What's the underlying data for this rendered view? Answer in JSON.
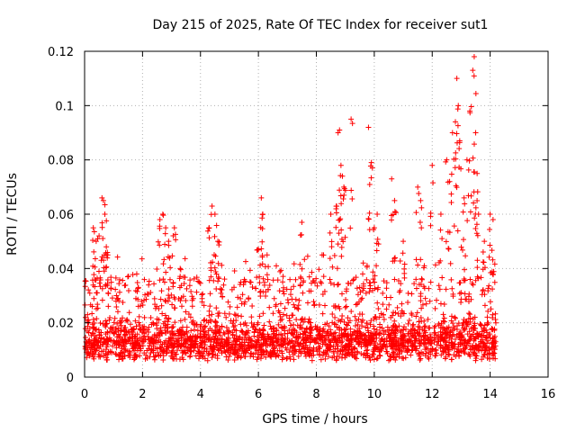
{
  "chart_data": {
    "type": "scatter",
    "title": "Day 215 of 2025, Rate Of TEC Index for receiver sut1",
    "xlabel": "GPS time / hours",
    "ylabel": "ROTI / TECUs",
    "xlim": [
      0,
      16
    ],
    "ylim": [
      0,
      0.12
    ],
    "xticks": [
      0,
      2,
      4,
      6,
      8,
      10,
      12,
      14,
      16
    ],
    "xtick_labels": [
      "0",
      "2",
      "4",
      "6",
      "8",
      "10",
      "12",
      "14",
      "16"
    ],
    "yticks": [
      0,
      0.02,
      0.04,
      0.06,
      0.08,
      0.1,
      0.12
    ],
    "ytick_labels": [
      "0",
      "0.02",
      "0.04",
      "0.06",
      "0.08",
      "0.1",
      "0.12"
    ],
    "grid": true,
    "marker": "+",
    "color": "#ff0000",
    "series": [
      {
        "name": "ROTI",
        "x_range": [
          0,
          14.2
        ],
        "baseline_range": [
          0.006,
          0.025
        ],
        "outliers": [
          [
            0.3,
            0.055
          ],
          [
            0.4,
            0.05
          ],
          [
            0.5,
            0.052
          ],
          [
            0.6,
            0.066
          ],
          [
            0.65,
            0.065
          ],
          [
            0.7,
            0.06
          ],
          [
            0.75,
            0.048
          ],
          [
            0.8,
            0.045
          ],
          [
            1.1,
            0.03
          ],
          [
            1.8,
            0.038
          ],
          [
            2.6,
            0.058
          ],
          [
            2.7,
            0.06
          ],
          [
            2.8,
            0.055
          ],
          [
            2.9,
            0.05
          ],
          [
            3.1,
            0.055
          ],
          [
            3.3,
            0.04
          ],
          [
            4.3,
            0.055
          ],
          [
            4.4,
            0.063
          ],
          [
            4.5,
            0.06
          ],
          [
            4.6,
            0.05
          ],
          [
            5.5,
            0.035
          ],
          [
            6.0,
            0.047
          ],
          [
            6.1,
            0.066
          ],
          [
            6.15,
            0.06
          ],
          [
            6.3,
            0.045
          ],
          [
            7.5,
            0.057
          ],
          [
            8.2,
            0.045
          ],
          [
            8.5,
            0.06
          ],
          [
            8.7,
            0.063
          ],
          [
            8.75,
            0.09
          ],
          [
            8.8,
            0.091
          ],
          [
            8.85,
            0.078
          ],
          [
            8.9,
            0.074
          ],
          [
            8.95,
            0.07
          ],
          [
            9.2,
            0.095
          ],
          [
            9.6,
            0.038
          ],
          [
            9.8,
            0.092
          ],
          [
            9.9,
            0.079
          ],
          [
            10.0,
            0.055
          ],
          [
            10.1,
            0.06
          ],
          [
            10.6,
            0.073
          ],
          [
            10.7,
            0.065
          ],
          [
            11.0,
            0.05
          ],
          [
            11.5,
            0.07
          ],
          [
            11.6,
            0.065
          ],
          [
            12.0,
            0.078
          ],
          [
            12.3,
            0.06
          ],
          [
            12.5,
            0.08
          ],
          [
            12.6,
            0.072
          ],
          [
            12.7,
            0.09
          ],
          [
            12.8,
            0.094
          ],
          [
            12.85,
            0.11
          ],
          [
            12.9,
            0.1
          ],
          [
            12.95,
            0.087
          ],
          [
            13.1,
            0.066
          ],
          [
            13.2,
            0.08
          ],
          [
            13.3,
            0.098
          ],
          [
            13.4,
            0.113
          ],
          [
            13.45,
            0.118
          ],
          [
            13.5,
            0.09
          ],
          [
            13.55,
            0.075
          ],
          [
            13.6,
            0.06
          ],
          [
            13.8,
            0.05
          ],
          [
            14.0,
            0.06
          ],
          [
            14.1,
            0.058
          ]
        ]
      }
    ]
  }
}
